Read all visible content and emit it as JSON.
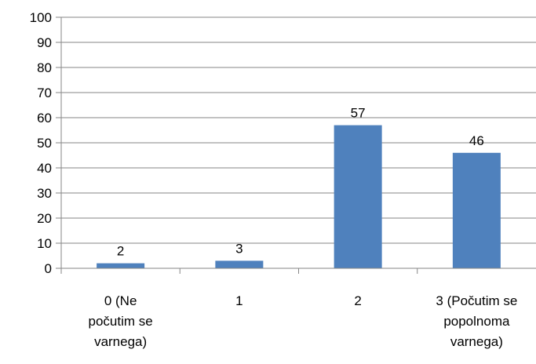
{
  "chart_data": {
    "type": "bar",
    "categories": [
      [
        "0 (Ne",
        "počutim se",
        "varnega)"
      ],
      [
        "1"
      ],
      [
        "2"
      ],
      [
        "3 (Počutim se",
        "popolnoma",
        "varnega)"
      ]
    ],
    "values": [
      2,
      3,
      57,
      46
    ],
    "data_labels": [
      "2",
      "3",
      "57",
      "46"
    ],
    "y_ticks": [
      "0",
      "10",
      "20",
      "30",
      "40",
      "50",
      "60",
      "70",
      "80",
      "90",
      "100"
    ],
    "ylim": [
      0,
      100
    ],
    "title": "",
    "xlabel": "",
    "ylabel": "",
    "grid": true,
    "bar_color": "#4F81BD",
    "grid_color": "#868686"
  }
}
